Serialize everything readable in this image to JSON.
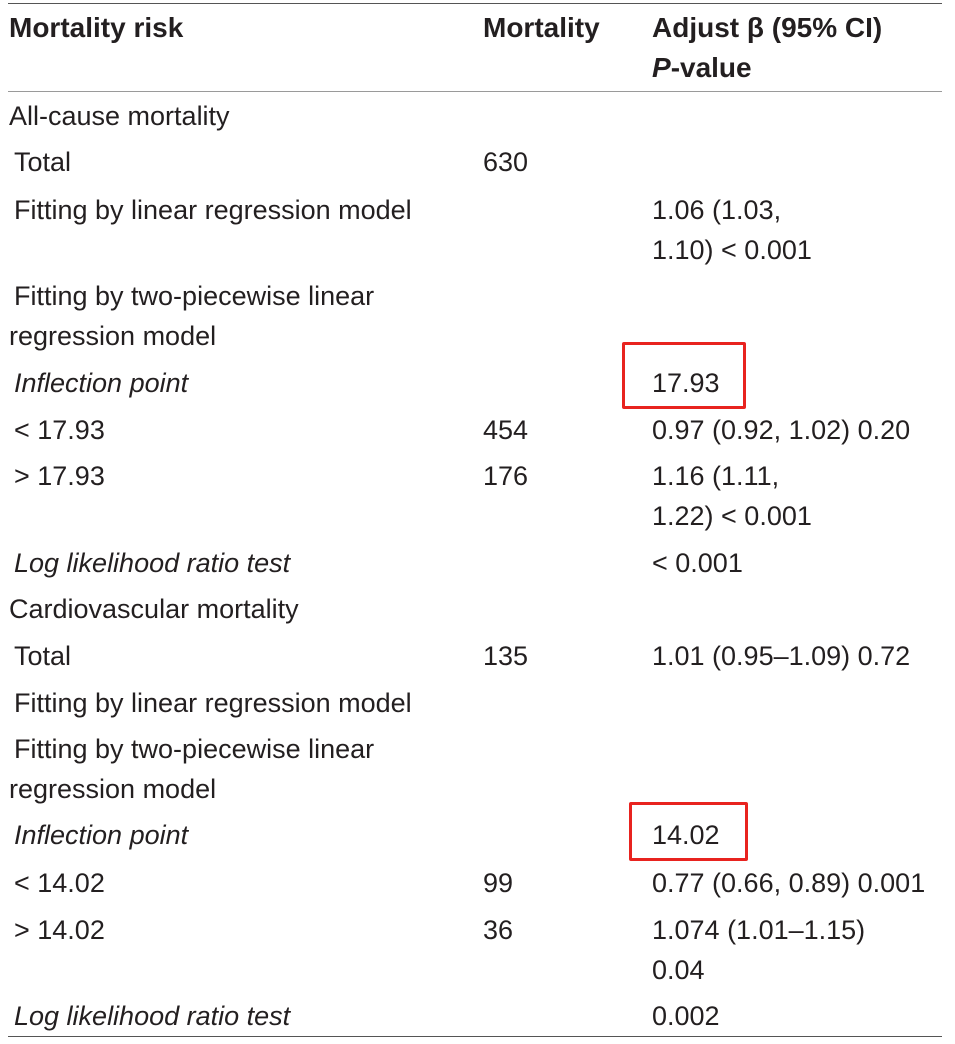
{
  "header": {
    "col1": "Mortality risk",
    "col2": "Mortality",
    "col3_line1": "Adjust β (95% CI)",
    "col3_line2_italic": "P",
    "col3_line2_rest": "-value"
  },
  "sections": {
    "all_cause": {
      "title": "All-cause mortality",
      "total_label": "Total",
      "total_count": "630",
      "linear_label": "Fitting by linear regression model",
      "linear_value_l1": "1.06 (1.03,",
      "linear_value_l2": "1.10) < 0.001",
      "piecewise_l1": "Fitting by two-piecewise linear",
      "piecewise_l2": "regression model",
      "inflection_label": "Inflection point",
      "inflection_value": "17.93",
      "below_label": "< 17.93",
      "below_count": "454",
      "below_value": "0.97 (0.92, 1.02) 0.20",
      "above_label": "> 17.93",
      "above_count": "176",
      "above_value_l1": "1.16 (1.11,",
      "above_value_l2": "1.22) < 0.001",
      "llr_label": "Log likelihood ratio test",
      "llr_value": "< 0.001"
    },
    "cardiovascular": {
      "title": "Cardiovascular mortality",
      "total_label": "Total",
      "total_count": "135",
      "total_value": "1.01 (0.95–1.09) 0.72",
      "linear_label": "Fitting by linear regression model",
      "piecewise_l1": "Fitting by two-piecewise linear",
      "piecewise_l2": "regression model",
      "inflection_label": "Inflection point",
      "inflection_value": "14.02",
      "below_label": "< 14.02",
      "below_count": "99",
      "below_value": "0.77 (0.66, 0.89) 0.001",
      "above_label": "> 14.02",
      "above_count": "36",
      "above_value_l1": "1.074 (1.01–1.15)",
      "above_value_l2": "0.04",
      "llr_label": "Log likelihood ratio test",
      "llr_value": "0.002"
    }
  },
  "colors": {
    "highlight": "#e8231f",
    "text": "#231f20"
  }
}
